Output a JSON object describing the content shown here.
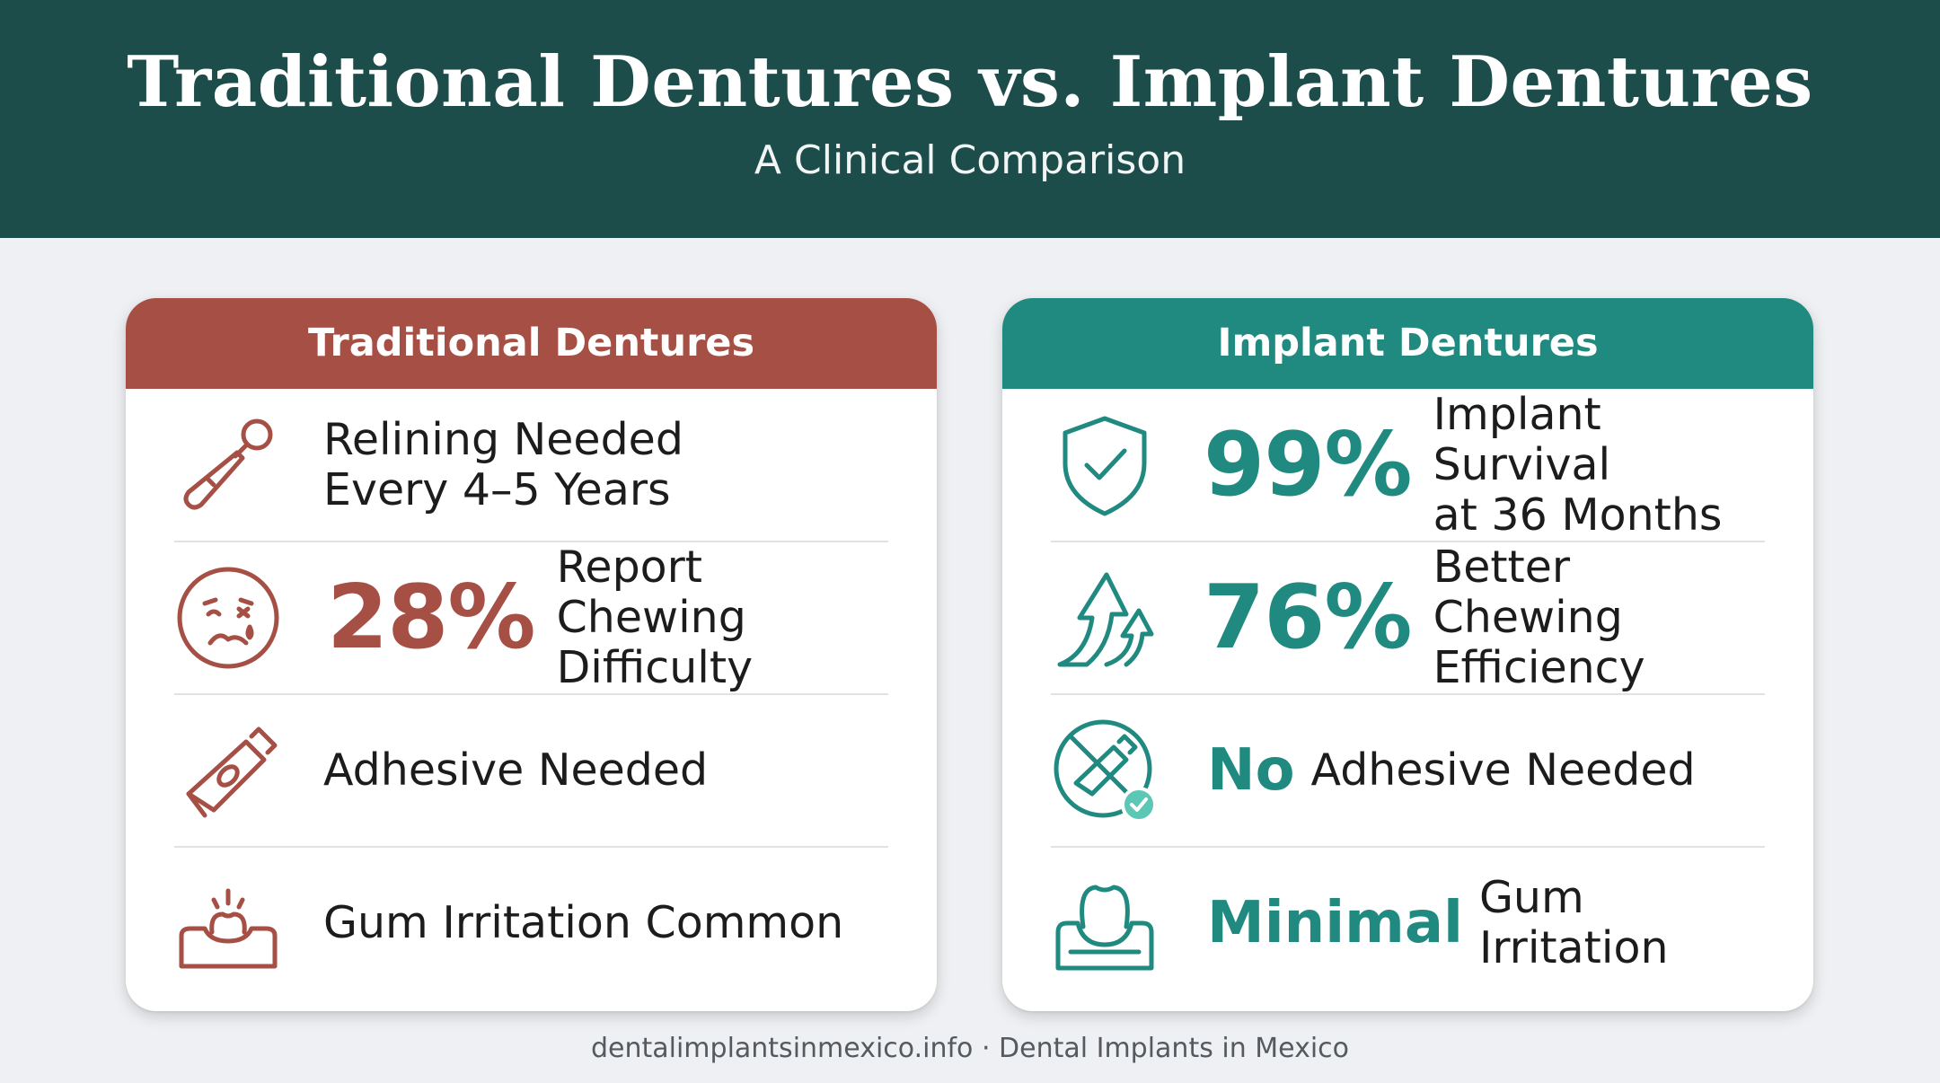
{
  "header": {
    "title": "Traditional Dentures vs. Implant Dentures",
    "subtitle": "A Clinical Comparison"
  },
  "colors": {
    "header_bg": "#1c4d4a",
    "traditional_accent": "#a54f45",
    "implant_accent": "#208a80",
    "page_bg": "#eef0f3"
  },
  "traditional": {
    "heading": "Traditional Dentures",
    "rows": [
      {
        "icon": "dental-mirror-icon",
        "line1": "Relining Needed",
        "line2": "Every 4–5 Years"
      },
      {
        "icon": "sad-face-icon",
        "stat": "28%",
        "line1": "Report Chewing",
        "line2": "Difficulty"
      },
      {
        "icon": "adhesive-tube-icon",
        "line1": "Adhesive Needed"
      },
      {
        "icon": "irritated-gum-icon",
        "line1": "Gum Irritation Common"
      }
    ]
  },
  "implant": {
    "heading": "Implant Dentures",
    "rows": [
      {
        "icon": "shield-check-icon",
        "stat": "99%",
        "line1": "Implant Survival",
        "line2": "at 36 Months"
      },
      {
        "icon": "up-arrows-icon",
        "stat": "76%",
        "line1": "Better Chewing",
        "line2": "Efficiency"
      },
      {
        "icon": "no-adhesive-icon",
        "lead": "No",
        "line1": "Adhesive Needed"
      },
      {
        "icon": "healthy-gum-icon",
        "lead": "Minimal",
        "line1": "Gum Irritation"
      }
    ]
  },
  "footer": {
    "text": "dentalimplantsinmexico.info · Dental Implants in Mexico"
  }
}
